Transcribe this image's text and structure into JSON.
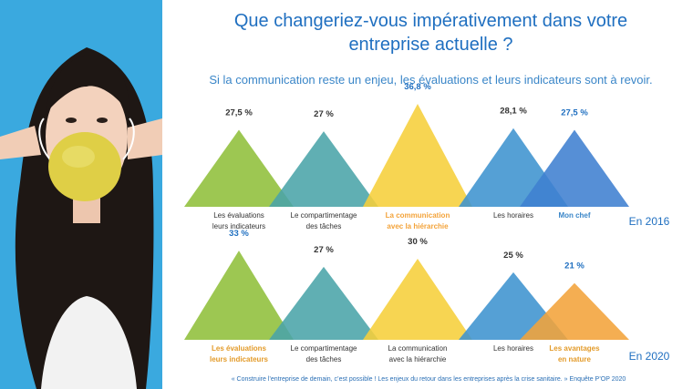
{
  "title_line1": "Que changeriez-vous impérativement dans votre",
  "title_line2": "entreprise actuelle ?",
  "subtitle": "Si la communication reste un enjeu, les évaluations et leurs indicateurs sont à revoir.",
  "footer": "« Construire l’entreprise de demain, c’est possible ! Les enjeux du retour dans les entreprises après la crise sanitaire. » Enquête P’OP 2020",
  "colors": {
    "green": "#8fbf3a",
    "teal": "#4aa4a8",
    "yellow": "#f6cf3a",
    "blue": "#3d93cf",
    "darkblue": "#3f7fd0",
    "orange": "#f3a33a"
  },
  "chart_data": [
    {
      "type": "area",
      "year_label": "En 2016",
      "unit": "%",
      "series": [
        {
          "value": 27.5,
          "value_label": "27,5 %",
          "label_lines": [
            "Les évaluations",
            "leurs indicateurs"
          ],
          "color": "#8fbf3a",
          "highlight": false
        },
        {
          "value": 27,
          "value_label": "27 %",
          "label_lines": [
            "Le compartimentage",
            "des tâches"
          ],
          "color": "#4aa4a8",
          "highlight": false
        },
        {
          "value": 36.8,
          "value_label": "36,8 %",
          "label_lines": [
            "La communication",
            "avec la hiérarchie"
          ],
          "color": "#f6cf3a",
          "highlight": true,
          "highlight_color": "#f3a33a"
        },
        {
          "value": 28.1,
          "value_label": "28,1 %",
          "label_lines": [
            "Les horaires"
          ],
          "color": "#3d93cf",
          "highlight": false
        },
        {
          "value": 27.5,
          "value_label": "27,5 %",
          "label_lines": [
            "Mon chef"
          ],
          "color": "#3f7fd0",
          "highlight": true,
          "highlight_color": "#3a86c8"
        }
      ]
    },
    {
      "type": "area",
      "year_label": "En 2020",
      "unit": "%",
      "series": [
        {
          "value": 33,
          "value_label": "33 %",
          "label_lines": [
            "Les évaluations",
            "leurs indicateurs"
          ],
          "color": "#8fbf3a",
          "highlight": true,
          "highlight_color": "#e39b2a"
        },
        {
          "value": 27,
          "value_label": "27 %",
          "label_lines": [
            "Le compartimentage",
            "des tâches"
          ],
          "color": "#4aa4a8",
          "highlight": false
        },
        {
          "value": 30,
          "value_label": "30 %",
          "label_lines": [
            "La communication",
            "avec la hiérarchie"
          ],
          "color": "#f6cf3a",
          "highlight": false
        },
        {
          "value": 25,
          "value_label": "25 %",
          "label_lines": [
            "Les horaires"
          ],
          "color": "#3d93cf",
          "highlight": false
        },
        {
          "value": 21,
          "value_label": "21 %",
          "label_lines": [
            "Les avantages",
            "en nature"
          ],
          "color": "#f3a33a",
          "highlight": true,
          "highlight_color": "#e39b2a"
        }
      ]
    }
  ]
}
